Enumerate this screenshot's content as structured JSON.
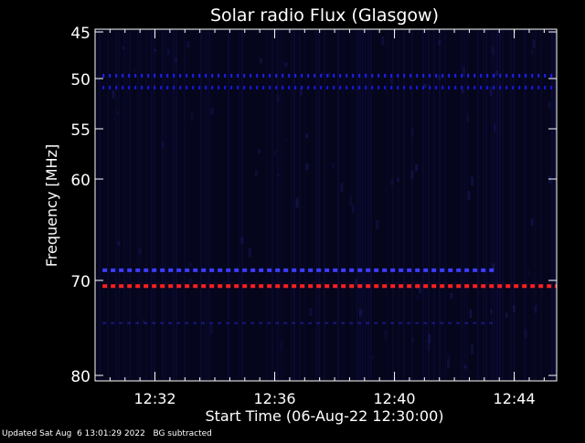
{
  "chart_data": {
    "type": "heatmap",
    "title": "Solar radio Flux (Glasgow)",
    "xlabel": "Start Time (06-Aug-22 12:30:00)",
    "ylabel": "Frequency [MHz]",
    "xlim": [
      "12:30:00",
      "12:45:25"
    ],
    "xticks": [
      "12:32",
      "12:36",
      "12:40",
      "12:44"
    ],
    "ylim": [
      45,
      80
    ],
    "yticks": [
      45,
      50,
      55,
      60,
      70,
      80
    ],
    "y_scale": "nonlinear",
    "grid": false,
    "background_intensity": "low",
    "emission_bands": [
      {
        "frequency_mhz": 49.7,
        "start": "12:30:15",
        "end": "12:45:25",
        "color": "#2222ff",
        "pattern": "dotted"
      },
      {
        "frequency_mhz": 50.9,
        "start": "12:30:15",
        "end": "12:45:25",
        "color": "#1a1aee",
        "pattern": "dotted"
      },
      {
        "frequency_mhz": 69.0,
        "start": "12:30:15",
        "end": "12:43:20",
        "color": "#3c3cff",
        "pattern": "dashed"
      },
      {
        "frequency_mhz": 70.6,
        "start": "12:30:15",
        "end": "12:45:25",
        "color": "#ff2020",
        "pattern": "dashed"
      },
      {
        "frequency_mhz": 74.5,
        "start": "12:30:15",
        "end": "12:43:20",
        "color": "#2020aa",
        "pattern": "faint-dashed"
      }
    ]
  },
  "footer": {
    "updated": "Updated Sat Aug  6 13:01:29 2022",
    "note": "BG subtracted"
  },
  "colors": {
    "background": "#000000",
    "plot_bg": "#05051c",
    "axis": "#ffffff",
    "text": "#ffffff"
  }
}
